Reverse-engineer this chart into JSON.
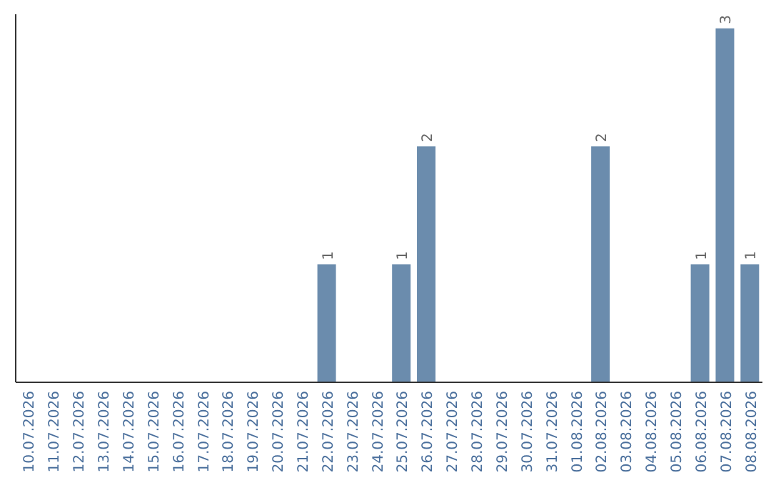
{
  "chart_data": {
    "type": "bar",
    "categories": [
      "10.07.2026",
      "11.07.2026",
      "12.07.2026",
      "13.07.2026",
      "14.07.2026",
      "15.07.2026",
      "16.07.2026",
      "17.07.2026",
      "18.07.2026",
      "19.07.2026",
      "20.07.2026",
      "21.07.2026",
      "22.07.2026",
      "23.07.2026",
      "24.07.2026",
      "25.07.2026",
      "26.07.2026",
      "27.07.2026",
      "28.07.2026",
      "29.07.2026",
      "30.07.2026",
      "31.07.2026",
      "01.08.2026",
      "02.08.2026",
      "03.08.2026",
      "04.08.2026",
      "05.08.2026",
      "06.08.2026",
      "07.08.2026",
      "08.08.2026"
    ],
    "values": [
      null,
      null,
      null,
      null,
      null,
      null,
      null,
      null,
      null,
      null,
      null,
      null,
      1,
      null,
      null,
      1,
      2,
      null,
      null,
      null,
      null,
      null,
      null,
      2,
      null,
      null,
      null,
      1,
      3,
      1
    ],
    "color": "#6b8cad",
    "data_labels": true
  }
}
